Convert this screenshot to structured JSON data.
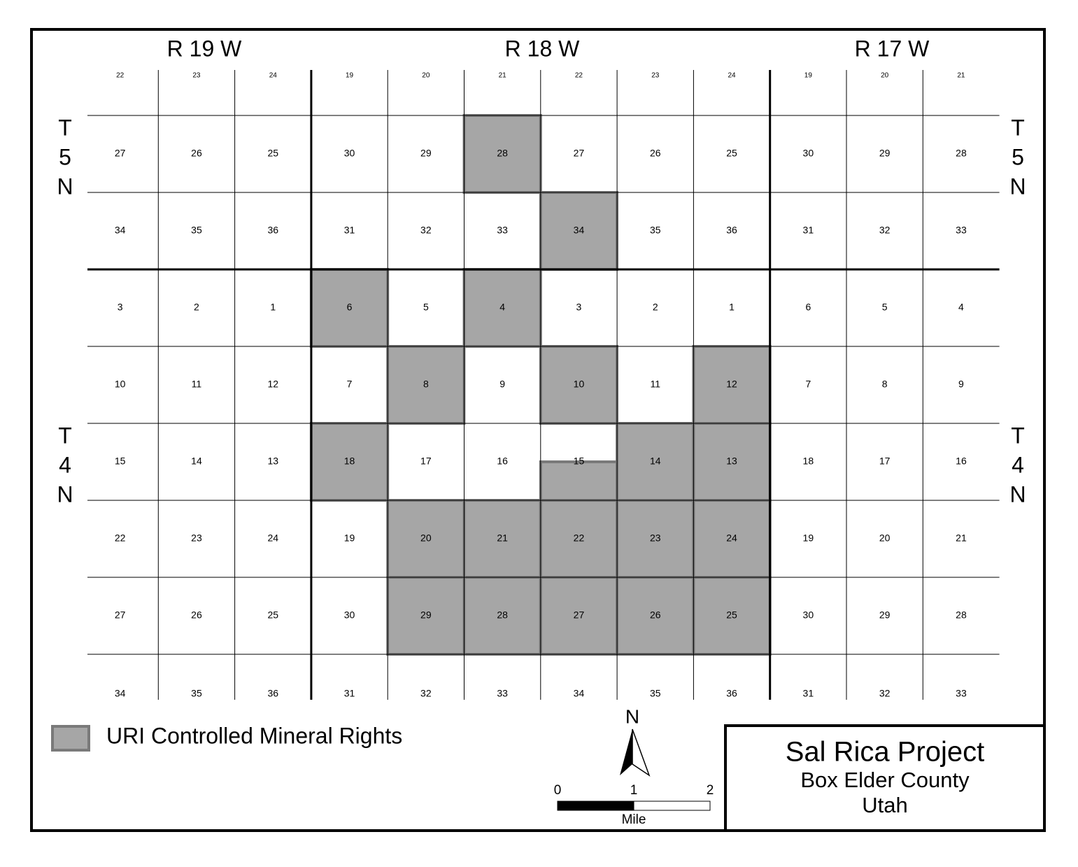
{
  "map": {
    "ranges": [
      "R 19 W",
      "R 18 W",
      "R 17 W"
    ],
    "townships": [
      [
        "T",
        "5",
        "N"
      ],
      [
        "T",
        "4",
        "N"
      ]
    ],
    "sections": [
      [
        "22",
        "23",
        "24",
        "19",
        "20",
        "21",
        "22",
        "23",
        "24",
        "19",
        "20",
        "21"
      ],
      [
        "27",
        "26",
        "25",
        "30",
        "29",
        "28",
        "27",
        "26",
        "25",
        "30",
        "29",
        "28"
      ],
      [
        "34",
        "35",
        "36",
        "31",
        "32",
        "33",
        "34",
        "35",
        "36",
        "31",
        "32",
        "33"
      ],
      [
        "3",
        "2",
        "1",
        "6",
        "5",
        "4",
        "3",
        "2",
        "1",
        "6",
        "5",
        "4"
      ],
      [
        "10",
        "11",
        "12",
        "7",
        "8",
        "9",
        "10",
        "11",
        "12",
        "7",
        "8",
        "9"
      ],
      [
        "15",
        "14",
        "13",
        "18",
        "17",
        "16",
        "15",
        "14",
        "13",
        "18",
        "17",
        "16"
      ],
      [
        "22",
        "23",
        "24",
        "19",
        "20",
        "21",
        "22",
        "23",
        "24",
        "19",
        "20",
        "21"
      ],
      [
        "27",
        "26",
        "25",
        "30",
        "29",
        "28",
        "27",
        "26",
        "25",
        "30",
        "29",
        "28"
      ],
      [
        "34",
        "35",
        "36",
        "31",
        "32",
        "33",
        "34",
        "35",
        "36",
        "31",
        "32",
        "33"
      ]
    ],
    "controlled": [
      [
        0,
        0,
        0,
        0,
        0,
        0,
        0,
        0,
        0,
        0,
        0,
        0
      ],
      [
        0,
        0,
        0,
        0,
        0,
        1,
        0,
        0,
        0,
        0,
        0,
        0
      ],
      [
        0,
        0,
        0,
        0,
        0,
        0,
        1,
        0,
        0,
        0,
        0,
        0
      ],
      [
        0,
        0,
        0,
        1,
        0,
        1,
        0,
        0,
        0,
        0,
        0,
        0
      ],
      [
        0,
        0,
        0,
        0,
        1,
        0,
        1,
        0,
        1,
        0,
        0,
        0
      ],
      [
        0,
        0,
        0,
        1,
        0,
        0,
        0.5,
        1,
        1,
        0,
        0,
        0
      ],
      [
        0,
        0,
        0,
        0,
        1,
        1,
        1,
        1,
        1,
        0,
        0,
        0
      ],
      [
        0,
        0,
        0,
        0,
        1,
        1,
        1,
        1,
        1,
        0,
        0,
        0
      ],
      [
        0,
        0,
        0,
        0,
        0,
        0,
        0,
        0,
        0,
        0,
        0,
        0
      ]
    ],
    "shade_color": "#a6a6a6",
    "legend": "URI Controlled Mineral Rights",
    "north": "N",
    "scale_bar": {
      "labels": [
        "0",
        "1",
        "2"
      ],
      "unit": "Mile"
    },
    "title_block": {
      "title": "Sal Rica Project",
      "county": "Box Elder County",
      "state": "Utah"
    }
  }
}
